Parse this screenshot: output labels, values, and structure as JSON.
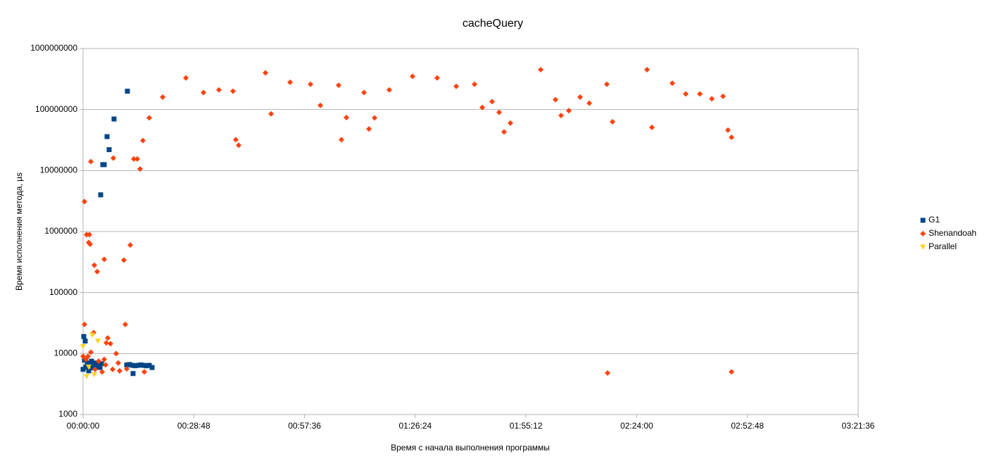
{
  "chart_data": {
    "type": "scatter",
    "title": "cacheQuery",
    "x_label": "Время с начала выполнения программы",
    "y_label": "Время исполнения метода, µs",
    "log_y": true,
    "grid": true,
    "legend": "right",
    "xlim": [
      0,
      12096
    ],
    "xticks": [
      {
        "value": 0,
        "label": "00:00:00"
      },
      {
        "value": 1728,
        "label": "00:28:48"
      },
      {
        "value": 3456,
        "label": "00:57:36"
      },
      {
        "value": 5184,
        "label": "01:26:24"
      },
      {
        "value": 6912,
        "label": "01:55:12"
      },
      {
        "value": 8640,
        "label": "02:24:00"
      },
      {
        "value": 10368,
        "label": "02:52:48"
      },
      {
        "value": 12096,
        "label": "03:21:36"
      }
    ],
    "ylim": [
      1000,
      1000000000
    ],
    "yticks": [
      1000,
      10000,
      100000,
      1000000,
      10000000,
      100000000,
      1000000000
    ],
    "series": [
      {
        "name": "G1",
        "color": "#004586",
        "marker": "square",
        "x": [
          692,
          483,
          374,
          407,
          308,
          330,
          275,
          11,
          33,
          780,
          1077,
          0,
          22,
          44,
          66,
          88,
          110,
          132,
          154,
          176,
          198,
          220,
          242,
          264,
          286,
          681,
          725,
          769,
          813,
          857,
          901,
          945,
          989,
          1033
        ],
        "values": [
          200000000,
          70000000,
          36000000,
          22000000,
          12500000,
          12500000,
          4000000,
          19000,
          16000,
          4700,
          5900,
          5500,
          7800,
          6000,
          7000,
          5200,
          6500,
          7500,
          5800,
          6200,
          7000,
          6000,
          6300,
          5900,
          6800,
          6500,
          6600,
          6400,
          6300,
          6400,
          6500,
          6400,
          6300,
          6400
        ]
      },
      {
        "name": "Shenandoah",
        "color": "#ff420e",
        "marker": "diamond",
        "x": [
          22,
          121,
          55,
          99,
          88,
          110,
          176,
          220,
          330,
          637,
          736,
          472,
          791,
          846,
          890,
          934,
          1033,
          1242,
          1604,
          1879,
          2120,
          2340,
          2383,
          2428,
          2846,
          2934,
          3230,
          3549,
          3703,
          3988,
          4032,
          4109,
          4384,
          4461,
          4549,
          4779,
          5142,
          5526,
          5823,
          6109,
          6230,
          6383,
          6493,
          6570,
          6669,
          7142,
          7372,
          7460,
          7581,
          7757,
          7900,
          8174,
          8262,
          8801,
          8877,
          9196,
          9405,
          9625,
          9812,
          9987,
          10064,
          10119,
          8185,
          10119,
          22,
          659,
          165,
          363,
          385,
          428,
          516,
          121,
          0,
          44,
          242,
          352,
          461,
          571,
          681,
          956,
          297,
          187,
          77,
          330,
          549
        ],
        "values": [
          3100000,
          14000000,
          890000,
          890000,
          660000,
          620000,
          280000,
          220000,
          350000,
          340000,
          600000,
          16000000,
          15500000,
          15500000,
          10600000,
          31000000,
          73000000,
          160000000,
          330000000,
          190000000,
          210000000,
          200000000,
          32000000,
          26000000,
          400000000,
          85000000,
          280000000,
          260000000,
          117000000,
          250000000,
          32000000,
          74000000,
          190000000,
          48000000,
          73000000,
          210000000,
          350000000,
          330000000,
          240000000,
          260000000,
          108000000,
          135000000,
          90000000,
          43000000,
          60000000,
          450000000,
          145000000,
          80000000,
          96000000,
          160000000,
          127000000,
          260000000,
          63000000,
          450000000,
          51000000,
          270000000,
          180000000,
          180000000,
          150000000,
          165000000,
          46000000,
          35000000,
          4800,
          5000,
          30000,
          30000,
          22000,
          15000,
          18000,
          14500,
          10000,
          10500,
          9000,
          8000,
          7500,
          6500,
          5500,
          5200,
          5600,
          5000,
          5000,
          5500,
          9000,
          8000,
          7000
        ]
      },
      {
        "name": "Parallel",
        "color": "#ffd320",
        "marker": "triangle",
        "x": [
          0,
          143,
          231,
          55,
          176,
          88
        ],
        "values": [
          13000,
          20000,
          16000,
          4200,
          4500,
          6000
        ]
      }
    ]
  }
}
